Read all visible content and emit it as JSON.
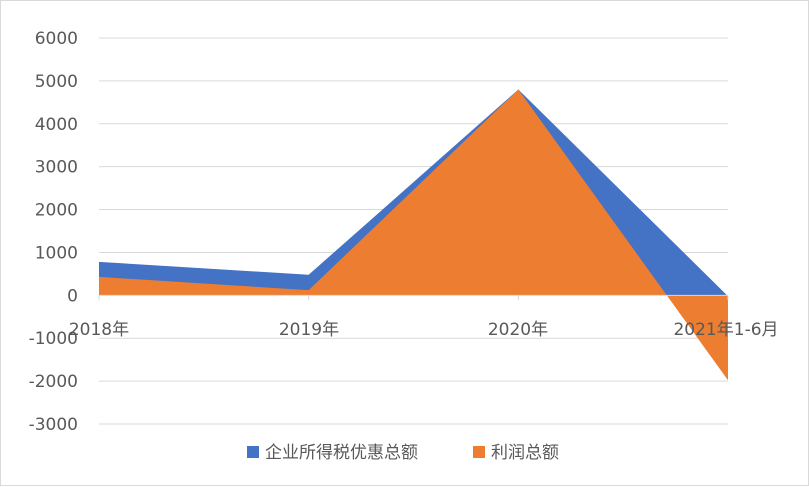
{
  "chart_data": {
    "type": "area",
    "categories": [
      "2018年",
      "2019年",
      "2020年",
      "2021年1-6月"
    ],
    "series": [
      {
        "name": "企业所得税优惠总额",
        "color": "#4472c4",
        "values": [
          780,
          480,
          4800,
          -20
        ]
      },
      {
        "name": "利润总额",
        "color": "#ed7d31",
        "values": [
          430,
          120,
          4800,
          -1980
        ]
      }
    ],
    "y_ticks": [
      6000,
      5000,
      4000,
      3000,
      2000,
      1000,
      0,
      -1000,
      -2000,
      -3000
    ],
    "ylim": [
      -3000,
      6000
    ],
    "grid": true,
    "legend_position": "bottom"
  }
}
